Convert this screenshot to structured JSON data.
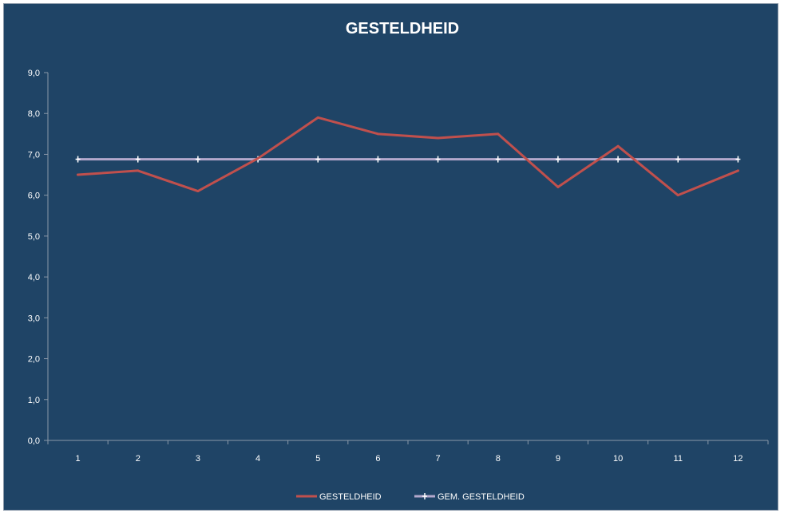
{
  "chart_data": {
    "type": "line",
    "title": "GESTELDHEID",
    "xlabel": "",
    "ylabel": "",
    "categories": [
      "1",
      "2",
      "3",
      "4",
      "5",
      "6",
      "7",
      "8",
      "9",
      "10",
      "11",
      "12"
    ],
    "ylim": [
      0,
      9
    ],
    "yticks": [
      "0,0",
      "1,0",
      "2,0",
      "3,0",
      "4,0",
      "5,0",
      "6,0",
      "7,0",
      "8,0",
      "9,0"
    ],
    "grid": false,
    "legend_position": "bottom",
    "series": [
      {
        "name": "GESTELDHEID",
        "color": "#c0504d",
        "values": [
          6.5,
          6.6,
          6.1,
          6.9,
          7.9,
          7.5,
          7.4,
          7.5,
          6.2,
          7.2,
          6.0,
          6.6
        ]
      },
      {
        "name": "GEM. GESTELDHEID",
        "color": "#b3a8cc",
        "marker": "plus",
        "values": [
          6.88,
          6.88,
          6.88,
          6.88,
          6.88,
          6.88,
          6.88,
          6.88,
          6.88,
          6.88,
          6.88,
          6.88
        ]
      }
    ],
    "colors": {
      "background": "#1f4466",
      "axis": "#8a98a8",
      "text": "#ffffff"
    }
  }
}
